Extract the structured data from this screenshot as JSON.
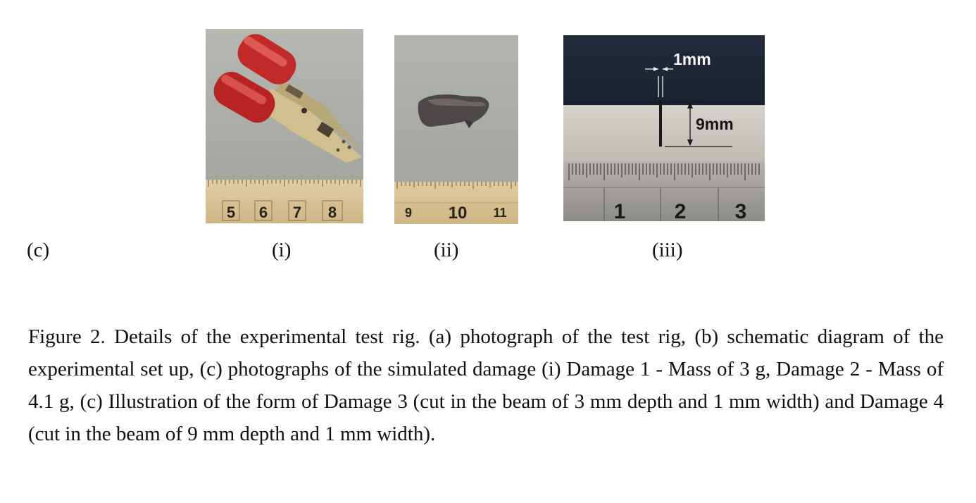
{
  "figure": {
    "panel_label": "(c)",
    "photos": [
      {
        "sub_label": "(i)",
        "subject": "red-handled crocodile clip on ruler",
        "ruler_numbers": [
          "5",
          "6",
          "7",
          "8"
        ]
      },
      {
        "sub_label": "(ii)",
        "subject": "small dark metal mass on ruler",
        "ruler_numbers": [
          "9",
          "10",
          "11"
        ]
      },
      {
        "sub_label": "(iii)",
        "subject": "cut in metal beam with dimension annotations",
        "ruler_numbers": [
          "1",
          "2",
          "3"
        ],
        "width_annotation": "1mm",
        "depth_annotation": "9mm"
      }
    ],
    "caption": "Figure 2. Details of the experimental test rig. (a) photograph of the test rig, (b) schematic diagram of the experimental set up, (c) photographs of the simulated damage (i) Damage 1 - Mass of 3 g, Damage 2 - Mass of 4.1 g,  (c) Illustration of the form of Damage 3 (cut in the beam of 3 mm depth and 1 mm width) and Damage 4 (cut in the beam of 9 mm depth and 1 mm width)."
  },
  "colors": {
    "background_i": "#a8aba4",
    "background_ii": "#a6a8a3",
    "ruler": "#d9c196",
    "clip_red": "#c22a2a",
    "beam_metal": "#c9c7c0",
    "dark_cloth": "#1f2738"
  }
}
